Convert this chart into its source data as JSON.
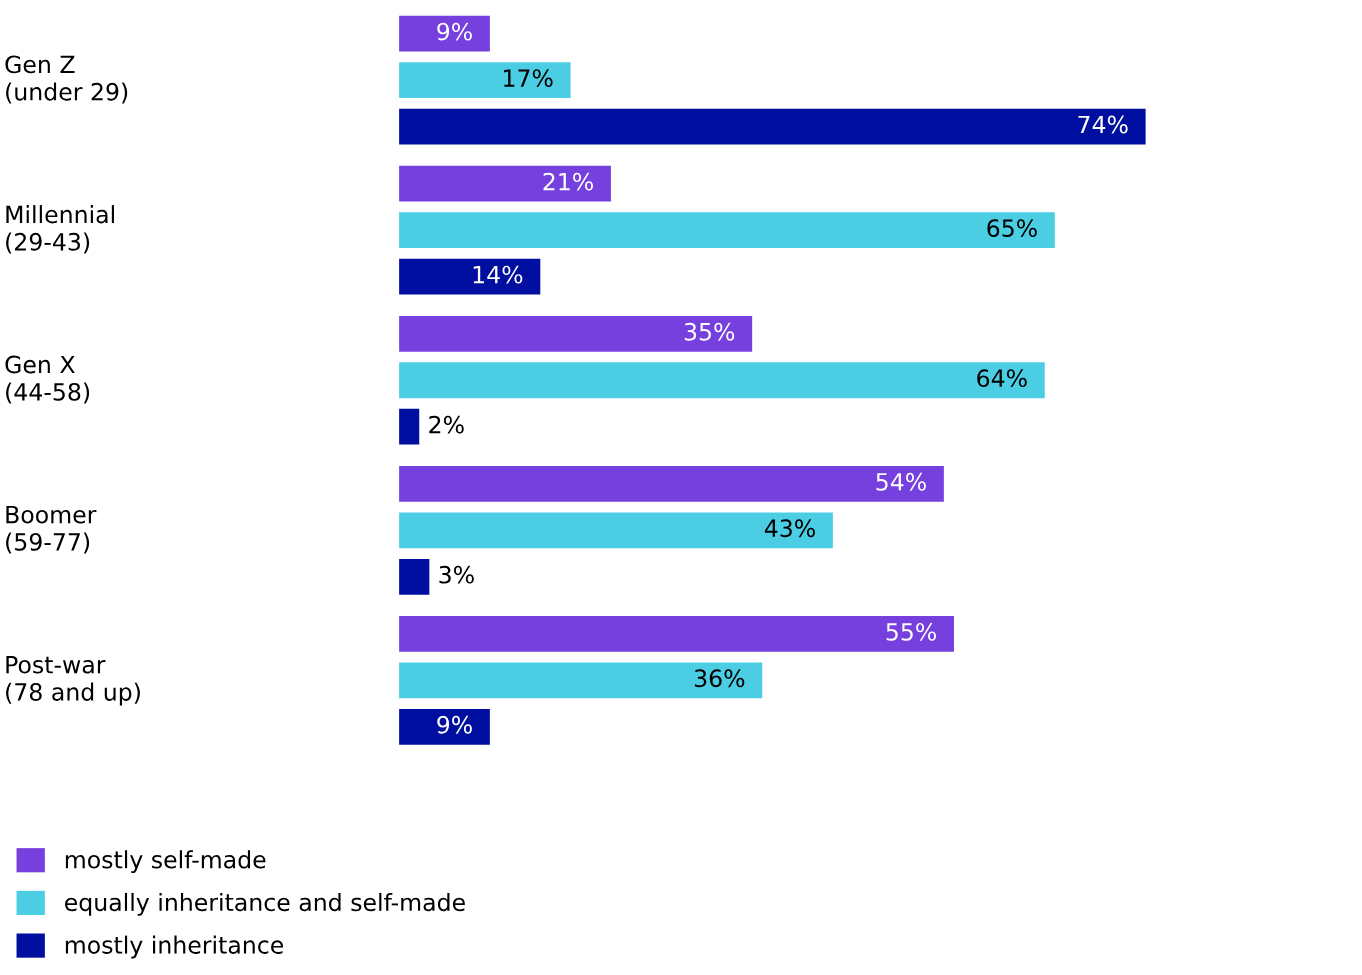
{
  "chart_data": {
    "type": "bar",
    "orientation": "horizontal",
    "categories": [
      "Gen Z\n(under 29)",
      "Millennial\n(29-43)",
      "Gen X\n(44-58)",
      "Boomer\n(59-77)",
      "Post-war\n(78 and up)"
    ],
    "series": [
      {
        "name": "mostly self-made",
        "color": "#7540de",
        "values": [
          9,
          21,
          35,
          54,
          55
        ],
        "value_labels": [
          "9%",
          "21%",
          "35%",
          "54%",
          "55%"
        ]
      },
      {
        "name": "equally inheritance and self-made",
        "color": "#4bcde4",
        "values": [
          17,
          65,
          64,
          43,
          36
        ],
        "value_labels": [
          "17%",
          "65%",
          "64%",
          "43%",
          "36%"
        ]
      },
      {
        "name": "mostly inheritance",
        "color": "#000fa0",
        "values": [
          74,
          14,
          2,
          3,
          9
        ],
        "value_labels": [
          "74%",
          "14%",
          "2%",
          "3%",
          "9%"
        ]
      }
    ],
    "legend": "bottom left"
  }
}
